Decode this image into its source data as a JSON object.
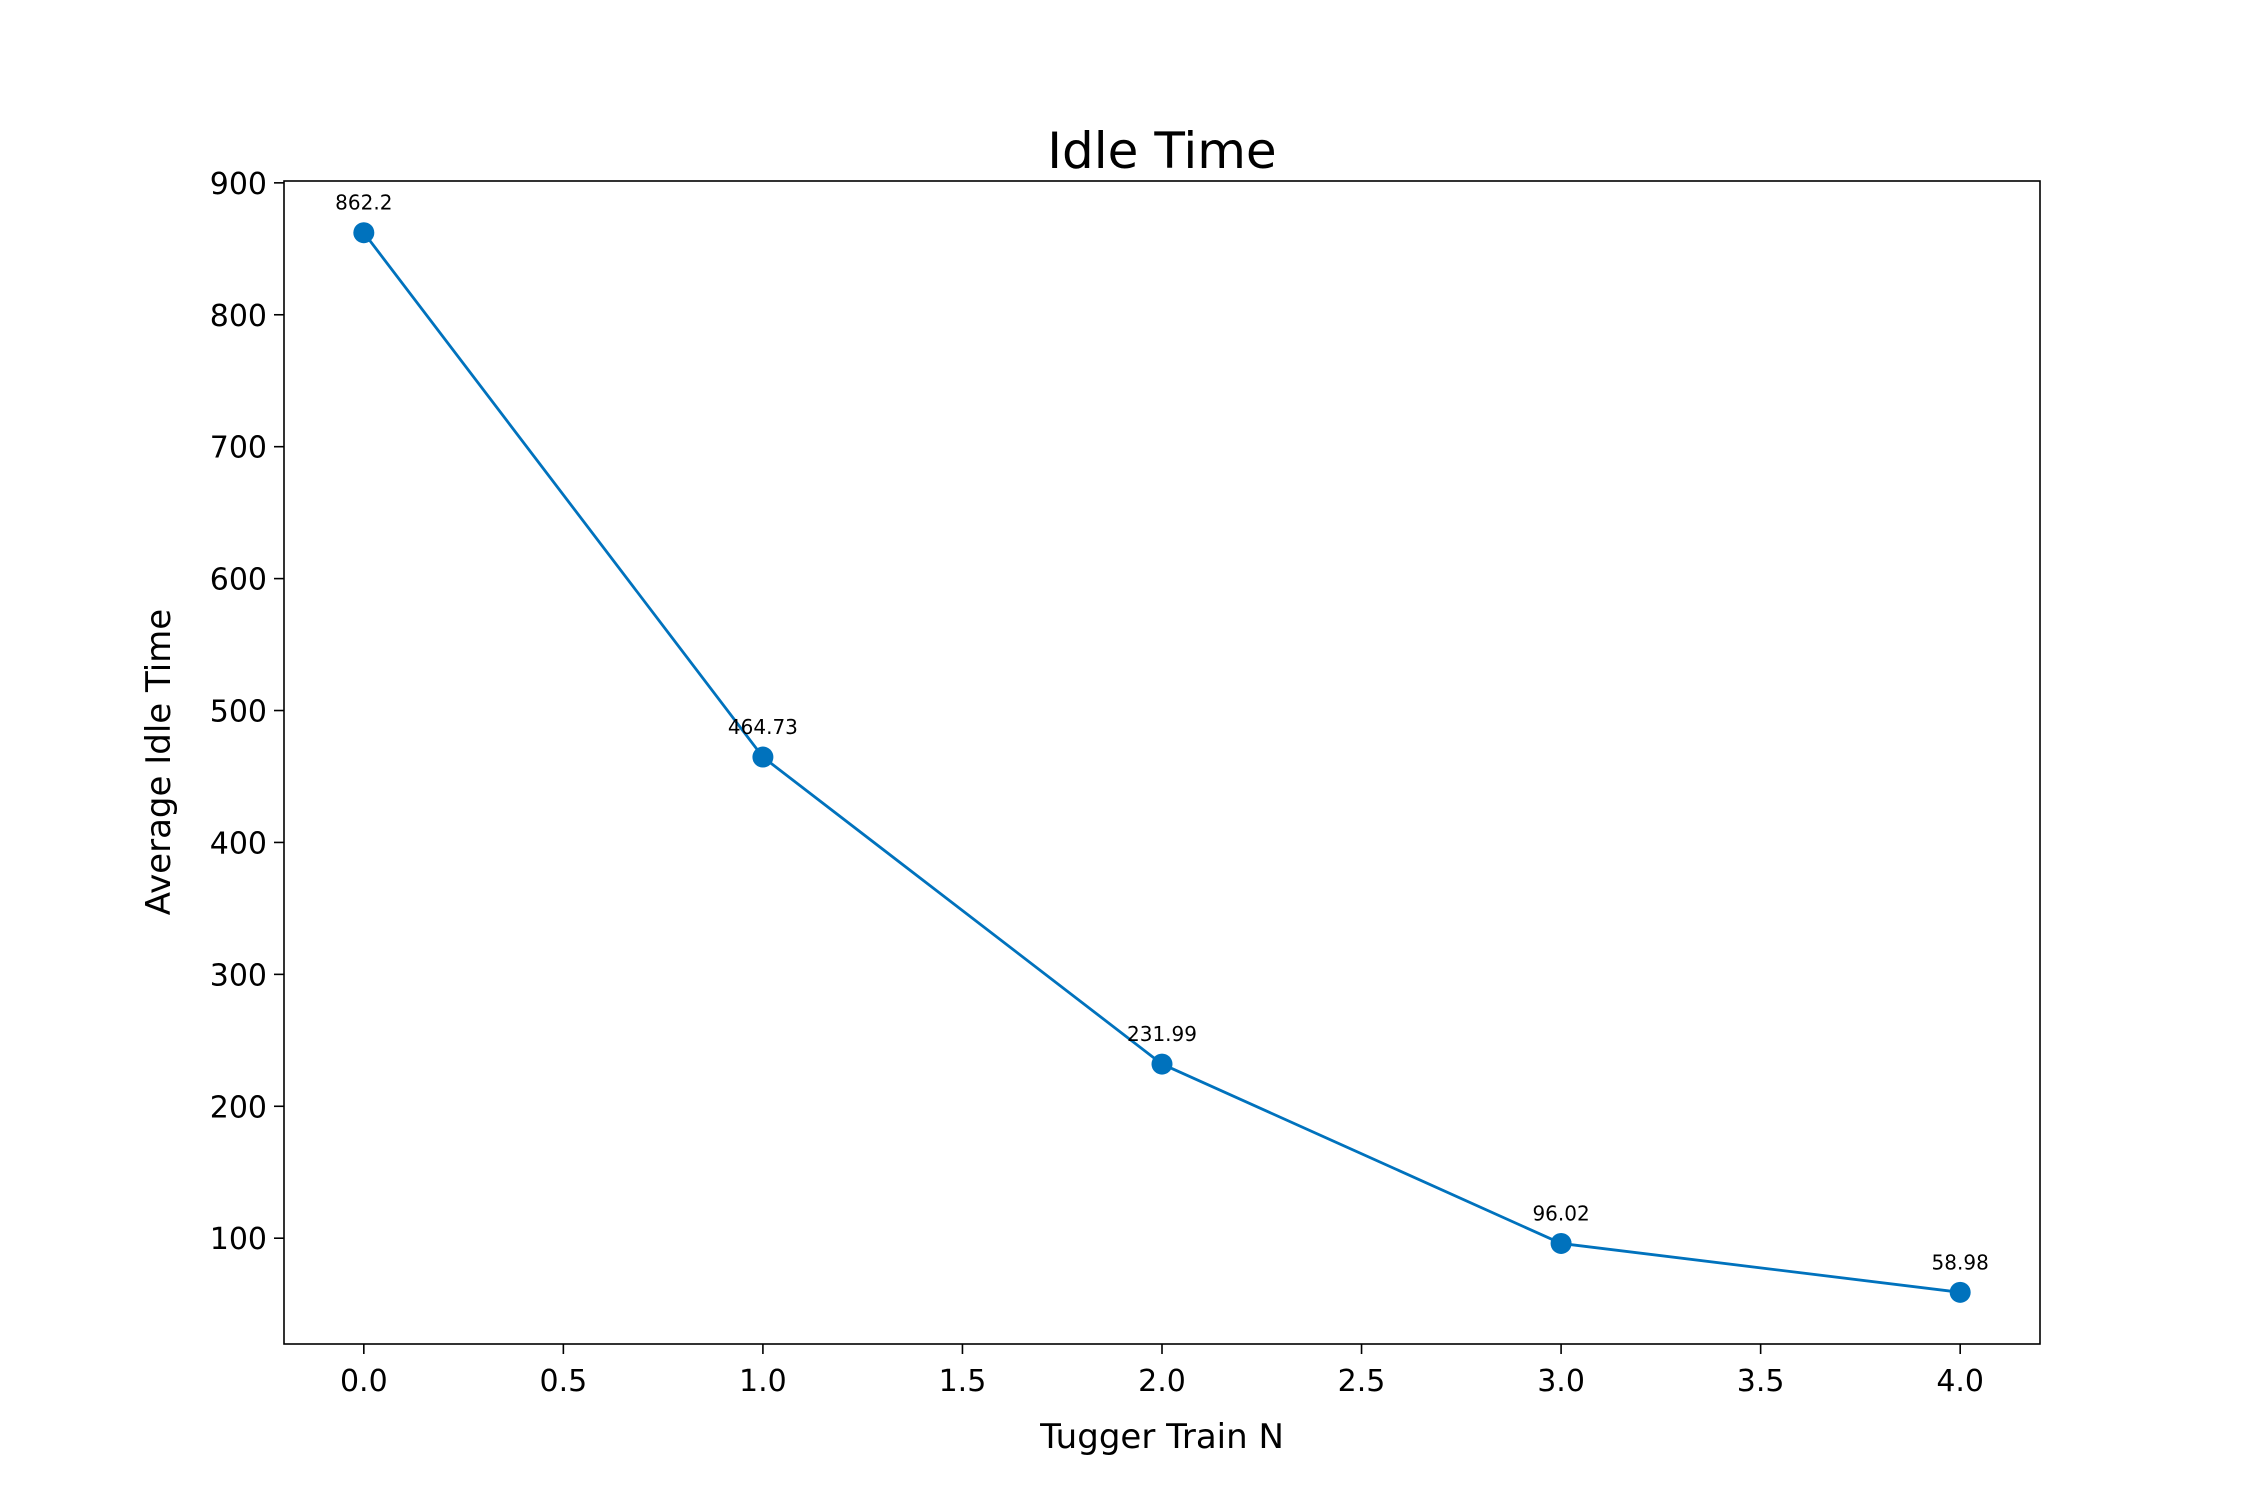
{
  "chart_data": {
    "type": "line",
    "title": "Idle Time",
    "xlabel": "Tugger Train N",
    "ylabel": "Average Idle Time",
    "x": [
      0,
      1,
      2,
      3,
      4
    ],
    "series": [
      {
        "values": [
          862.2,
          464.73,
          231.99,
          96.02,
          58.98
        ],
        "data_labels": [
          "862.2",
          "464.73",
          "231.99",
          "96.02",
          "58.98"
        ],
        "color": "#0072bd",
        "marker": "circle"
      }
    ],
    "xlim": [
      -0.2,
      4.2
    ],
    "ylim": [
      19.8,
      901.4
    ],
    "x_ticks": [
      0.0,
      0.5,
      1.0,
      1.5,
      2.0,
      2.5,
      3.0,
      3.5,
      4.0
    ],
    "x_tick_labels": [
      "0.0",
      "0.5",
      "1.0",
      "1.5",
      "2.0",
      "2.5",
      "3.0",
      "3.5",
      "4.0"
    ],
    "y_ticks": [
      100,
      200,
      300,
      400,
      500,
      600,
      700,
      800,
      900
    ],
    "y_tick_labels": [
      "100",
      "200",
      "300",
      "400",
      "500",
      "600",
      "700",
      "800",
      "900"
    ],
    "grid": false,
    "legend": "none"
  }
}
